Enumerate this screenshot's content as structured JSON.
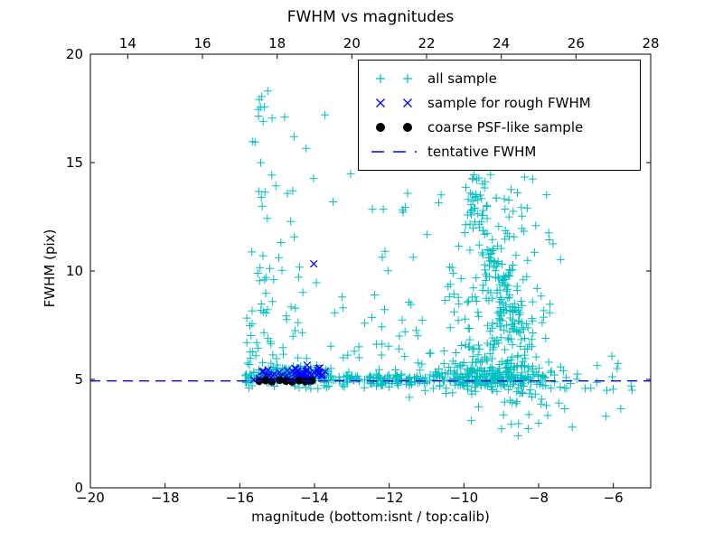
{
  "chart_data": {
    "type": "scatter",
    "title": "FWHM vs magnitudes",
    "xlabel": "magnitude (bottom:isnt / top:calib)",
    "ylabel": "FWHM (pix)",
    "grid": false,
    "seed": 7,
    "axes": {
      "bottom": {
        "lim": [
          -20,
          -5
        ],
        "ticks": [
          {
            "v": -20,
            "t": "−20"
          },
          {
            "v": -18,
            "t": "−18"
          },
          {
            "v": -16,
            "t": "−16"
          },
          {
            "v": -14,
            "t": "−14"
          },
          {
            "v": -12,
            "t": "−12"
          },
          {
            "v": -10,
            "t": "−10"
          },
          {
            "v": -8,
            "t": "−8"
          },
          {
            "v": -6,
            "t": "−6"
          }
        ]
      },
      "top": {
        "lim": [
          13,
          28
        ],
        "offset_from_bottom": 33,
        "ticks": [
          {
            "v": 14,
            "t": "14"
          },
          {
            "v": 16,
            "t": "16"
          },
          {
            "v": 18,
            "t": "18"
          },
          {
            "v": 20,
            "t": "20"
          },
          {
            "v": 22,
            "t": "22"
          },
          {
            "v": 24,
            "t": "24"
          },
          {
            "v": 26,
            "t": "26"
          },
          {
            "v": 28,
            "t": "28"
          }
        ]
      },
      "left": {
        "lim": [
          0,
          20
        ],
        "ticks": [
          {
            "v": 0,
            "t": "0"
          },
          {
            "v": 5,
            "t": "5"
          },
          {
            "v": 10,
            "t": "10"
          },
          {
            "v": 15,
            "t": "15"
          },
          {
            "v": 20,
            "t": "20"
          }
        ]
      }
    },
    "legend": {
      "position": "upper right",
      "items": [
        {
          "label": "all sample",
          "marker": "plus",
          "color": "#00bfbf"
        },
        {
          "label": "sample for rough FWHM",
          "marker": "x",
          "color": "#0000ff"
        },
        {
          "label": "coarse PSF-like sample",
          "marker": "dot",
          "color": "#000000"
        },
        {
          "label": "tentative FWHM",
          "marker": "dashes",
          "color": "#0000ff"
        }
      ]
    },
    "tentative_fwhm": 4.93,
    "series": [
      {
        "name": "all sample",
        "marker": "plus",
        "color": "#00bfbf",
        "clusters": [
          {
            "n": 70,
            "x": [
              "g",
              -15.35,
              0.3,
              -15.92,
              -14.55
            ],
            "y": [
              "p",
              5.2,
              18.2,
              2.3
            ]
          },
          {
            "n": 22,
            "x": [
              "g",
              -14.5,
              0.22,
              -14.95,
              -13.85
            ],
            "y": [
              "p",
              5.5,
              16.5,
              2.6
            ]
          },
          {
            "n": 165,
            "x": [
              "u",
              -15.86,
              -13.55
            ],
            "y": [
              "g",
              5.12,
              0.26,
              4.55,
              6.2
            ]
          },
          {
            "n": 110,
            "x": [
              "u",
              -13.55,
              -11.2
            ],
            "y": [
              "g",
              5.0,
              0.17,
              4.6,
              5.9
            ]
          },
          {
            "n": 18,
            "x": [
              "u",
              -13.6,
              -11.25
            ],
            "y": [
              "p",
              6.0,
              15.0,
              2.0
            ]
          },
          {
            "n": 120,
            "ridge": [
              -9.75,
              13.9,
              -8.55,
              6.0,
              0.18,
              0.5
            ]
          },
          {
            "n": 250,
            "x": [
              "g",
              -9.05,
              0.75,
              -11.2,
              -7.35
            ],
            "y": [
              "p",
              4.95,
              14.5,
              2.1
            ]
          },
          {
            "n": 240,
            "x": [
              "g",
              -9.3,
              1.05,
              -11.35,
              -7.15
            ],
            "y": [
              "g",
              5.05,
              0.33,
              4.25,
              6.3
            ]
          },
          {
            "n": 26,
            "x": [
              "g",
              -8.3,
              0.8,
              -9.9,
              -6.4
            ],
            "y": [
              "u",
              2.7,
              4.6
            ]
          },
          {
            "n": 20,
            "x": [
              "u",
              -12.3,
              -10.3
            ],
            "y": [
              "p",
              6.0,
              14.0,
              1.6
            ]
          },
          {
            "n": 14,
            "x": [
              "u",
              -7.3,
              -5.4
            ],
            "y": [
              "g",
              5.1,
              0.5,
              3.9,
              6.5
            ]
          },
          {
            "n": 8,
            "x": [
              "u",
              -14.4,
              -11.5
            ],
            "y": [
              "u",
              8.0,
              16.0
            ]
          }
        ],
        "points": [
          [
            -15.25,
            18.3
          ],
          [
            -14.8,
            17.1
          ],
          [
            -13.72,
            17.2
          ],
          [
            -14.55,
            16.2
          ],
          [
            -12.45,
            12.85
          ],
          [
            -12.16,
            12.85
          ],
          [
            -5.9,
            5.5
          ],
          [
            -5.5,
            4.5
          ],
          [
            -5.8,
            3.65
          ],
          [
            -6.2,
            3.3
          ],
          [
            -7.1,
            2.8
          ],
          [
            -8.55,
            2.4
          ],
          [
            -11.46,
            4.17
          ]
        ]
      },
      {
        "name": "sample for rough FWHM",
        "marker": "x",
        "color": "#0000ff",
        "clusters": [
          {
            "n": 34,
            "x": [
              "g",
              -14.75,
              0.45,
              -15.72,
              -13.85
            ],
            "y": [
              "g",
              5.15,
              0.18,
              4.8,
              5.75
            ]
          },
          {
            "n": 26,
            "x": [
              "g",
              -14.1,
              0.25,
              -14.6,
              -13.62
            ],
            "y": [
              "g",
              5.2,
              0.22,
              4.85,
              5.9
            ]
          }
        ],
        "points": [
          [
            -14.02,
            10.33
          ]
        ]
      },
      {
        "name": "coarse PSF-like sample",
        "marker": "dot",
        "color": "#000000",
        "points": [
          [
            -15.48,
            4.92
          ],
          [
            -15.31,
            4.95
          ],
          [
            -15.14,
            4.9
          ],
          [
            -14.94,
            4.97
          ],
          [
            -14.77,
            4.93
          ],
          [
            -14.6,
            4.89
          ],
          [
            -14.41,
            4.95
          ],
          [
            -14.24,
            4.91
          ],
          [
            -14.07,
            4.94
          ]
        ]
      },
      {
        "name": "tentative FWHM",
        "type": "hline",
        "color": "#0000ff",
        "linestyle": "dashed",
        "y": 4.93
      }
    ]
  }
}
